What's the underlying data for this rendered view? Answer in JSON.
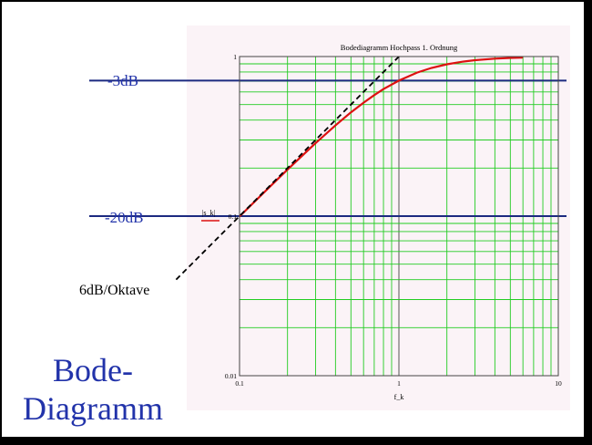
{
  "slide": {
    "title_line1": "Bode-",
    "title_line2": "Diagramm",
    "level_3db": "-3dB",
    "level_20db": "-20dB",
    "slope_label": "6dB/Oktave"
  },
  "colors": {
    "grid": "#22cc22",
    "curve": "#dd1111",
    "level_lines": "#1c2a80",
    "labels": "#2233aa",
    "asymptote": "#000000"
  },
  "chart_data": {
    "type": "line",
    "title": "Bodediagramm Hochpass 1. Ordnung",
    "xlabel": "f_k",
    "ylabel": "|s_k|",
    "xscale": "log",
    "yscale": "log",
    "xlim": [
      0.1,
      10
    ],
    "ylim": [
      0.01,
      1
    ],
    "x_ticks": [
      "0.1",
      "1",
      "10"
    ],
    "y_ticks": [
      "0.01",
      "0.1",
      "1"
    ],
    "grid": true,
    "series": [
      {
        "style": "solid",
        "x": [
          0.1,
          0.15,
          0.2,
          0.3,
          0.4,
          0.5,
          0.6,
          0.7,
          0.8,
          1.0,
          1.3,
          1.6,
          2.0,
          2.5,
          3.0,
          4.0,
          5.0,
          6.0
        ],
        "y": [
          0.0995,
          0.148,
          0.196,
          0.287,
          0.371,
          0.447,
          0.514,
          0.573,
          0.625,
          0.707,
          0.793,
          0.848,
          0.894,
          0.928,
          0.949,
          0.97,
          0.981,
          0.986
        ]
      },
      {
        "style": "dashed",
        "x": [
          0.04,
          1.0
        ],
        "y": [
          0.04,
          1.0
        ]
      }
    ],
    "reference_levels": [
      {
        "label": "-3dB",
        "y": 0.707
      },
      {
        "label": "-20dB",
        "y": 0.1
      }
    ]
  }
}
